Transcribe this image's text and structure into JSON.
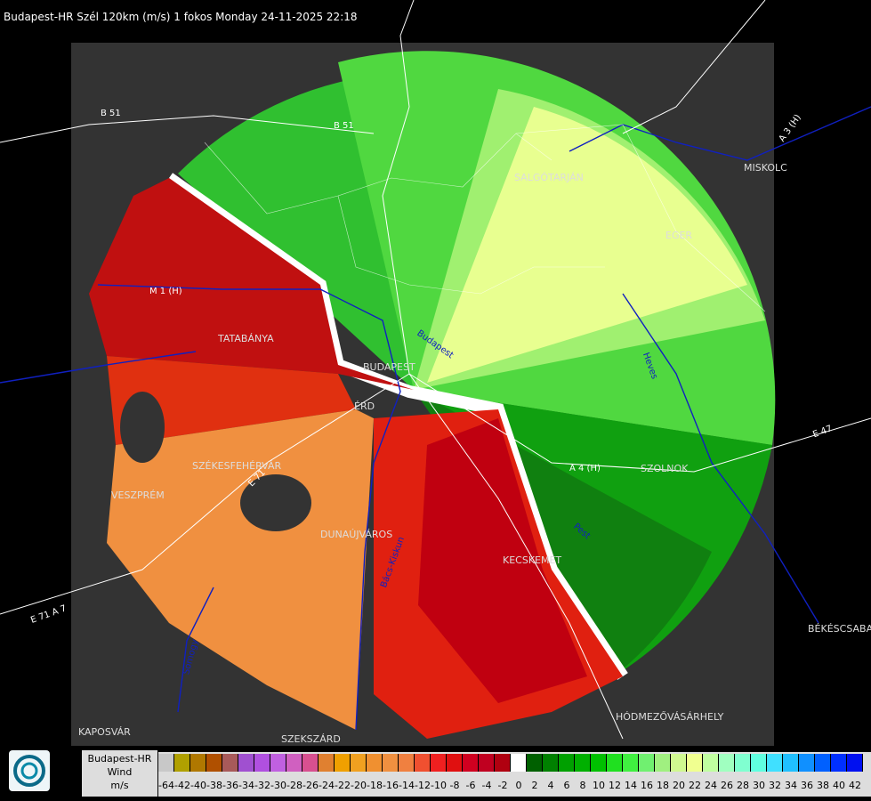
{
  "title": "Budapest-HR Szél 120km (m/s) 1 fokos Monday 24-11-2025 22:18",
  "cities": [
    {
      "id": "salgotarjan",
      "label": "SALGÓTARJÁN"
    },
    {
      "id": "miskolc",
      "label": "MISKOLC"
    },
    {
      "id": "eger",
      "label": "EGER"
    },
    {
      "id": "tatabanya",
      "label": "TATABÁNYA"
    },
    {
      "id": "budapest",
      "label": "BUDAPEST"
    },
    {
      "id": "erd",
      "label": "ÉRD"
    },
    {
      "id": "szekesfehervar",
      "label": "SZÉKESFEHÉRVÁR"
    },
    {
      "id": "veszprem",
      "label": "VESZPRÉM"
    },
    {
      "id": "dunaujvaros",
      "label": "DUNAÚJVÁROS"
    },
    {
      "id": "kecskemet",
      "label": "KECSKEMÉT"
    },
    {
      "id": "szolnok",
      "label": "SZOLNOK"
    },
    {
      "id": "bekescsaba",
      "label": "BÉKÉSCSABA"
    },
    {
      "id": "hodmezovasarhely",
      "label": "HÓDMEZŐVÁSÁRHELY"
    },
    {
      "id": "kaposvar",
      "label": "KAPOSVÁR"
    },
    {
      "id": "szekszard",
      "label": "SZEKSZÁRD"
    }
  ],
  "roads": [
    {
      "id": "b51a",
      "label": "B 51"
    },
    {
      "id": "b51b",
      "label": "B 51"
    },
    {
      "id": "a3h",
      "label": "A 3 (H)"
    },
    {
      "id": "m1h",
      "label": "M 1 (H)"
    },
    {
      "id": "e71",
      "label": "E 71"
    },
    {
      "id": "e47",
      "label": "E 47"
    },
    {
      "id": "a4h",
      "label": "A 4 (H)"
    },
    {
      "id": "e71b",
      "label": "E 71 A 7"
    }
  ],
  "rivers": [
    {
      "id": "duna",
      "label": "Budapest"
    },
    {
      "id": "heves",
      "label": "Heves"
    },
    {
      "id": "pest",
      "label": "Pest"
    },
    {
      "id": "bacskiskun",
      "label": "Bács-Kiskun"
    },
    {
      "id": "somogy",
      "label": "Somogy"
    }
  ],
  "legend": {
    "line1": "Budapest-HR",
    "line2": "Wind",
    "line3": "m/s",
    "ticks": [
      "-64",
      "-42",
      "-40",
      "-38",
      "-36",
      "-34",
      "-32",
      "-30",
      "-28",
      "-26",
      "-24",
      "-22",
      "-20",
      "-18",
      "-16",
      "-14",
      "-12",
      "-10",
      "-8",
      "-6",
      "-4",
      "-2",
      "0",
      "2",
      "4",
      "6",
      "8",
      "10",
      "12",
      "14",
      "16",
      "18",
      "20",
      "22",
      "24",
      "26",
      "28",
      "30",
      "32",
      "34",
      "36",
      "38",
      "40",
      "42"
    ],
    "colors": [
      "#c8c8c8",
      "#b0a000",
      "#b07800",
      "#b05000",
      "#a85a5a",
      "#a050d0",
      "#b050e0",
      "#c060e0",
      "#d060c0",
      "#d85090",
      "#e08030",
      "#f0a000",
      "#f0a020",
      "#f09030",
      "#f09040",
      "#f08040",
      "#f05030",
      "#f02020",
      "#e01010",
      "#d00020",
      "#c00020",
      "#b00010",
      "#ffffff",
      "#006000",
      "#008000",
      "#00a000",
      "#00b000",
      "#00c000",
      "#20e020",
      "#40f040",
      "#70f070",
      "#a0f080",
      "#d0f890",
      "#f0ff90",
      "#c0ffa0",
      "#a0ffc0",
      "#80ffd0",
      "#60ffe0",
      "#40e0ff",
      "#20c0ff",
      "#1090ff",
      "#0060ff",
      "#0030ff",
      "#0010f0"
    ]
  }
}
